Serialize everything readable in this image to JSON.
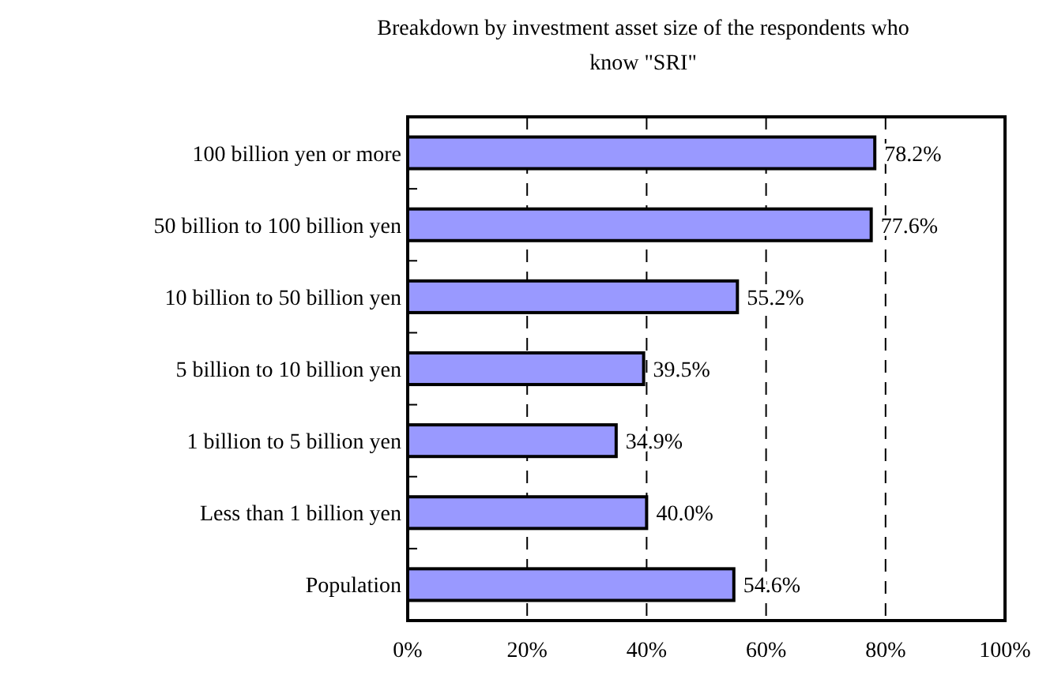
{
  "chart_data": {
    "type": "bar",
    "orientation": "horizontal",
    "title": "Breakdown by investment asset size of the respondents who know \"SRI\"",
    "categories": [
      "100 billion yen or more",
      "50 billion to 100 billion yen",
      "10 billion to 50 billion yen",
      "5 billion to 10 billion yen",
      "1 billion to 5 billion yen",
      "Less than 1 billion yen",
      "Population"
    ],
    "values": [
      78.2,
      77.6,
      55.2,
      39.5,
      34.9,
      40.0,
      54.6
    ],
    "value_labels": [
      "78.2%",
      "77.6%",
      "55.2%",
      "39.5%",
      "34.9%",
      "40.0%",
      "54.6%"
    ],
    "color": "#9999ff",
    "xlim": [
      0,
      100
    ],
    "xticks": [
      {
        "value": 0,
        "label": "0%"
      },
      {
        "value": 20,
        "label": "20%"
      },
      {
        "value": 40,
        "label": "40%"
      },
      {
        "value": 60,
        "label": "60%"
      },
      {
        "value": 80,
        "label": "80%"
      },
      {
        "value": 100,
        "label": "100%"
      }
    ],
    "grid": "x"
  }
}
